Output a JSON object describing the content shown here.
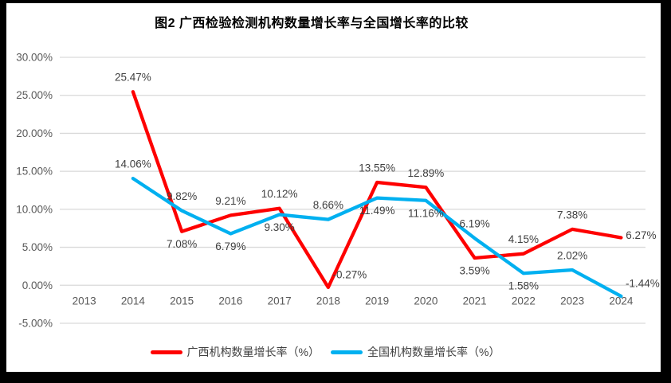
{
  "chart_data": {
    "type": "line",
    "title": "图2 广西检验检测机构数量增长率与全国增长率的比较",
    "categories": [
      "2013",
      "2014",
      "2015",
      "2016",
      "2017",
      "2018",
      "2019",
      "2020",
      "2021",
      "2022",
      "2023",
      "2024"
    ],
    "series": [
      {
        "name": "广西机构数量增长率（%）",
        "color": "#FE0000",
        "values": [
          null,
          25.47,
          7.08,
          9.21,
          10.12,
          -0.27,
          13.55,
          12.89,
          3.59,
          4.15,
          7.38,
          6.27
        ],
        "label_side": [
          null,
          "above",
          "below",
          "above",
          "above",
          "right-up",
          "above",
          "above",
          "below",
          "above",
          "above",
          "right"
        ]
      },
      {
        "name": "全国机构数量增长率（%）",
        "color": "#00B0F0",
        "values": [
          null,
          14.06,
          9.82,
          6.79,
          9.3,
          8.66,
          11.49,
          11.16,
          6.19,
          1.58,
          2.02,
          -1.44
        ],
        "label_side": [
          null,
          "above",
          "above",
          "below",
          "below",
          "above",
          "below",
          "below",
          "above",
          "below",
          "above",
          "right-up"
        ]
      }
    ],
    "ylim": [
      -5,
      30
    ],
    "yticks": [
      {
        "v": 30,
        "label": "30.00%"
      },
      {
        "v": 25,
        "label": "25.00%"
      },
      {
        "v": 20,
        "label": "20.00%"
      },
      {
        "v": 15,
        "label": "15.00%"
      },
      {
        "v": 10,
        "label": "10.00%"
      },
      {
        "v": 5,
        "label": "5.00%"
      },
      {
        "v": 0,
        "label": "0.00%"
      },
      {
        "v": -5,
        "label": "-5.00%"
      }
    ],
    "data_label_format": "0.00%",
    "grid": true,
    "legend_position": "bottom"
  },
  "colors": {
    "grid": "#D9D9D9",
    "axis_text": "#595959",
    "data_label_text": "#404040",
    "title_text": "#000000",
    "frame": "#000000",
    "background": "#FFFFFF"
  }
}
